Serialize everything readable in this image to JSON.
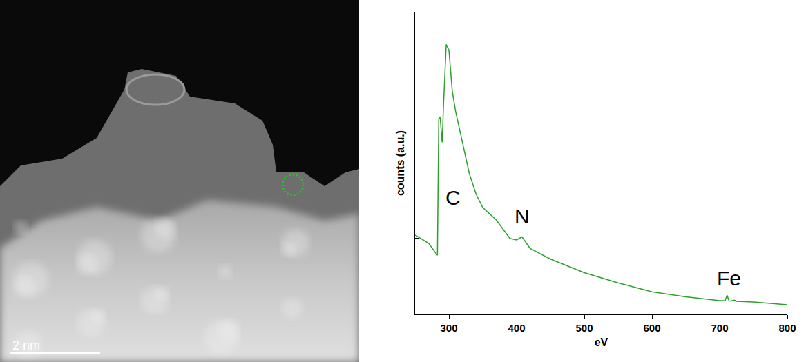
{
  "image": {
    "scale_bar": "2 nm"
  },
  "chart_data": {
    "type": "line",
    "x_label": "eV",
    "y_label": "counts (a.u.)",
    "x": [
      250,
      270,
      283,
      285,
      287,
      290,
      292,
      296,
      300,
      305,
      310,
      320,
      330,
      340,
      350,
      370,
      390,
      400,
      408,
      420,
      450,
      500,
      550,
      600,
      650,
      700,
      708,
      711,
      714,
      722,
      725,
      750,
      800
    ],
    "values": [
      2.09,
      1.87,
      1.55,
      5.18,
      5.22,
      4.55,
      5.55,
      7.15,
      7.0,
      5.9,
      5.36,
      4.55,
      3.73,
      3.18,
      2.82,
      2.49,
      2.0,
      1.96,
      2.04,
      1.73,
      1.45,
      1.09,
      0.82,
      0.58,
      0.45,
      0.35,
      0.35,
      0.49,
      0.33,
      0.36,
      0.33,
      0.31,
      0.24
    ],
    "color": "#2ca02c",
    "xlim": [
      250,
      800
    ],
    "ylim": [
      0,
      8
    ],
    "xticks": [
      300,
      400,
      500,
      600,
      700,
      800
    ],
    "yticks": [
      0,
      1,
      2,
      3,
      4,
      5,
      6,
      7,
      8
    ],
    "tick_labels": "x",
    "grid": false,
    "annotations": [
      {
        "text": "C",
        "x": 306,
        "y": 2.75
      },
      {
        "text": "N",
        "x": 408,
        "y": 2.25
      },
      {
        "text": "Fe",
        "x": 714,
        "y": 0.6
      }
    ]
  }
}
